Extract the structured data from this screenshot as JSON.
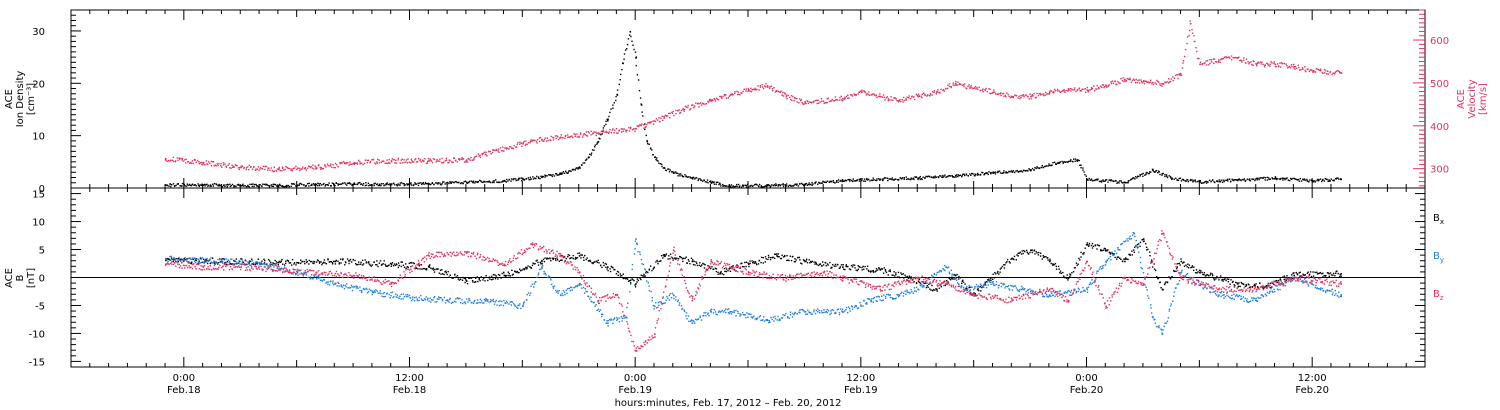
{
  "colors": {
    "density": "#000000",
    "velocity": "#e3325f",
    "bx": "#000000",
    "by": "#1f7fe0",
    "bz": "#e3325f"
  },
  "chart_data": [
    {
      "type": "scatter",
      "panel": "top",
      "ylabel_lines": [
        "ACE",
        "Ion Density",
        "[cm⁻³]"
      ],
      "y2label_lines": [
        "ACE",
        "Velocity",
        "[km/s]"
      ],
      "ylim": [
        0,
        34
      ],
      "y2lim": [
        255,
        670
      ],
      "yticks": [
        "0",
        "10",
        "20",
        "30"
      ],
      "y2ticks": [
        "300",
        "400",
        "500",
        "600"
      ],
      "series": [
        {
          "key": "density",
          "axis": "left",
          "points": [
            [
              -1.0,
              0.7
            ],
            [
              1.0,
              0.7
            ],
            [
              3.0,
              0.6
            ],
            [
              5.0,
              0.6
            ],
            [
              7.0,
              0.8
            ],
            [
              9.0,
              0.9
            ],
            [
              11.0,
              0.8
            ],
            [
              13.0,
              0.9
            ],
            [
              15.0,
              1.2
            ],
            [
              17.0,
              1.5
            ],
            [
              18.0,
              1.8
            ],
            [
              19.0,
              2.2
            ],
            [
              20.0,
              2.8
            ],
            [
              21.0,
              4
            ],
            [
              21.5,
              6
            ],
            [
              22.0,
              9
            ],
            [
              22.5,
              13
            ],
            [
              23.0,
              18
            ],
            [
              23.3,
              24
            ],
            [
              23.7,
              30
            ],
            [
              24.0,
              25
            ],
            [
              24.3,
              16
            ],
            [
              24.6,
              9
            ],
            [
              25.0,
              6
            ],
            [
              25.5,
              4
            ],
            [
              26.0,
              3
            ],
            [
              27.0,
              2
            ],
            [
              28.0,
              1.2
            ],
            [
              29.0,
              0.5
            ],
            [
              31.0,
              0.6
            ],
            [
              33.0,
              0.8
            ],
            [
              35.0,
              1.5
            ],
            [
              37.0,
              1.8
            ],
            [
              39.0,
              2
            ],
            [
              41.0,
              2.5
            ],
            [
              43.0,
              3
            ],
            [
              45.0,
              3.6
            ],
            [
              46.5,
              5
            ],
            [
              47.5,
              5.5
            ],
            [
              48.0,
              1.8
            ],
            [
              50.0,
              1.2
            ],
            [
              51.5,
              3.5
            ],
            [
              52.5,
              2
            ],
            [
              54.0,
              1.3
            ],
            [
              56.0,
              1.6
            ],
            [
              58.0,
              2
            ],
            [
              60.0,
              1.5
            ],
            [
              61.5,
              1.8
            ]
          ]
        },
        {
          "key": "velocity",
          "axis": "right",
          "points": [
            [
              -1.0,
              325
            ],
            [
              1.0,
              315
            ],
            [
              3.0,
              305
            ],
            [
              5.0,
              300
            ],
            [
              7.0,
              305
            ],
            [
              9.0,
              315
            ],
            [
              11.0,
              320
            ],
            [
              13.0,
              320
            ],
            [
              15.0,
              322
            ],
            [
              16.0,
              335
            ],
            [
              18.0,
              360
            ],
            [
              19.0,
              370
            ],
            [
              20.0,
              375
            ],
            [
              22.0,
              385
            ],
            [
              24.0,
              395
            ],
            [
              25.5,
              420
            ],
            [
              26.5,
              440
            ],
            [
              28.0,
              460
            ],
            [
              30.0,
              485
            ],
            [
              31.0,
              495
            ],
            [
              32.0,
              470
            ],
            [
              33.0,
              455
            ],
            [
              35.0,
              465
            ],
            [
              36.0,
              480
            ],
            [
              37.0,
              470
            ],
            [
              38.0,
              460
            ],
            [
              39.0,
              470
            ],
            [
              40.0,
              480
            ],
            [
              41.0,
              500
            ],
            [
              42.0,
              490
            ],
            [
              43.0,
              480
            ],
            [
              44.0,
              470
            ],
            [
              45.0,
              470
            ],
            [
              46.0,
              480
            ],
            [
              47.0,
              485
            ],
            [
              48.0,
              485
            ],
            [
              49.0,
              495
            ],
            [
              50.0,
              510
            ],
            [
              51.0,
              505
            ],
            [
              52.0,
              500
            ],
            [
              53.0,
              520
            ],
            [
              53.5,
              640
            ],
            [
              54.0,
              545
            ],
            [
              55.0,
              555
            ],
            [
              56.0,
              560
            ],
            [
              57.0,
              545
            ],
            [
              58.0,
              545
            ],
            [
              59.0,
              540
            ],
            [
              60.0,
              530
            ],
            [
              61.5,
              525
            ]
          ]
        }
      ]
    },
    {
      "type": "scatter",
      "panel": "bottom",
      "ylabel_lines": [
        "ACE",
        "B",
        "[nT]"
      ],
      "ylim": [
        -16,
        16
      ],
      "yticks": [
        "15",
        "10",
        "5",
        "0",
        "-5",
        "-10",
        "-15"
      ],
      "legend": [
        {
          "key": "bx",
          "label": "B",
          "sub": "x"
        },
        {
          "key": "by",
          "label": "B",
          "sub": "y"
        },
        {
          "key": "bz",
          "label": "B",
          "sub": "z"
        }
      ],
      "series": [
        {
          "key": "bx",
          "points": [
            [
              -1.0,
              3.2
            ],
            [
              2.0,
              3.0
            ],
            [
              5.0,
              2.8
            ],
            [
              8.0,
              3.0
            ],
            [
              11.0,
              2.5
            ],
            [
              13.0,
              2.0
            ],
            [
              15.0,
              -0.5
            ],
            [
              17.0,
              0.5
            ],
            [
              19.0,
              3
            ],
            [
              21.0,
              4
            ],
            [
              22.5,
              2
            ],
            [
              24.0,
              -1
            ],
            [
              25.5,
              4
            ],
            [
              27.0,
              3
            ],
            [
              28.5,
              1
            ],
            [
              30.0,
              2.5
            ],
            [
              31.5,
              4
            ],
            [
              33.0,
              3
            ],
            [
              35.0,
              2
            ],
            [
              37.0,
              1.5
            ],
            [
              38.5,
              0
            ],
            [
              40.0,
              -2
            ],
            [
              41.0,
              0.5
            ],
            [
              42.0,
              -3
            ],
            [
              44.0,
              3.5
            ],
            [
              45.0,
              5
            ],
            [
              46.0,
              3
            ],
            [
              47.0,
              0
            ],
            [
              48.0,
              6
            ],
            [
              49.0,
              5
            ],
            [
              50.0,
              3
            ],
            [
              51.0,
              7
            ],
            [
              52.0,
              -2
            ],
            [
              53.0,
              3
            ],
            [
              54.0,
              1
            ],
            [
              56.0,
              -1
            ],
            [
              57.5,
              -1.5
            ],
            [
              59.0,
              0.5
            ],
            [
              61.5,
              0.8
            ]
          ]
        },
        {
          "key": "by",
          "points": [
            [
              -1.0,
              3.5
            ],
            [
              2.0,
              3
            ],
            [
              4.0,
              2.5
            ],
            [
              6.0,
              1
            ],
            [
              8.0,
              -1
            ],
            [
              10.0,
              -2.5
            ],
            [
              12.0,
              -3.5
            ],
            [
              14.0,
              -4
            ],
            [
              16.0,
              -4
            ],
            [
              18.0,
              -5
            ],
            [
              19.0,
              2
            ],
            [
              20.0,
              -3
            ],
            [
              21.0,
              -1
            ],
            [
              22.5,
              -8
            ],
            [
              23.5,
              -7
            ],
            [
              24.0,
              7
            ],
            [
              25.0,
              -5
            ],
            [
              26.0,
              -3
            ],
            [
              27.0,
              -8
            ],
            [
              28.0,
              -6
            ],
            [
              29.0,
              -6
            ],
            [
              31.0,
              -7.5
            ],
            [
              33.0,
              -6
            ],
            [
              35.0,
              -6
            ],
            [
              36.5,
              -4
            ],
            [
              38.0,
              -3
            ],
            [
              39.0,
              -2
            ],
            [
              40.5,
              2
            ],
            [
              41.5,
              -2
            ],
            [
              43.0,
              -1
            ],
            [
              44.5,
              -2
            ],
            [
              46.0,
              -3
            ],
            [
              48.0,
              -2
            ],
            [
              49.0,
              3
            ],
            [
              50.5,
              8
            ],
            [
              51.5,
              -7
            ],
            [
              52.0,
              -10
            ],
            [
              53.0,
              1
            ],
            [
              55.0,
              -3
            ],
            [
              57.0,
              -4
            ],
            [
              59.0,
              0
            ],
            [
              61.5,
              -3
            ]
          ]
        },
        {
          "key": "bz",
          "points": [
            [
              -1.0,
              2.5
            ],
            [
              1.0,
              2
            ],
            [
              3.0,
              2
            ],
            [
              5.0,
              1.5
            ],
            [
              7.0,
              1
            ],
            [
              9.0,
              0.5
            ],
            [
              11.0,
              -1
            ],
            [
              13.0,
              4
            ],
            [
              15.0,
              4.5
            ],
            [
              17.0,
              2.5
            ],
            [
              18.5,
              6
            ],
            [
              20.0,
              4
            ],
            [
              21.0,
              1
            ],
            [
              22.0,
              -4
            ],
            [
              23.0,
              -3
            ],
            [
              24.0,
              -13
            ],
            [
              25.0,
              -10
            ],
            [
              26.0,
              5
            ],
            [
              27.0,
              -4
            ],
            [
              28.0,
              3
            ],
            [
              29.0,
              2
            ],
            [
              30.0,
              1
            ],
            [
              32.0,
              0
            ],
            [
              34.0,
              1
            ],
            [
              35.0,
              0
            ],
            [
              37.0,
              -2
            ],
            [
              39.0,
              0
            ],
            [
              40.5,
              -1
            ],
            [
              42.0,
              -3
            ],
            [
              44.0,
              -4
            ],
            [
              46.0,
              -2
            ],
            [
              47.0,
              -4
            ],
            [
              48.0,
              3
            ],
            [
              49.0,
              -5
            ],
            [
              50.0,
              0
            ],
            [
              51.0,
              -1
            ],
            [
              52.0,
              8
            ],
            [
              53.0,
              0
            ],
            [
              55.0,
              -2
            ],
            [
              57.0,
              -2
            ],
            [
              59.0,
              0
            ],
            [
              61.5,
              -1
            ]
          ]
        }
      ]
    }
  ],
  "time_axis": {
    "xlim": [
      -6,
      66
    ],
    "tick_labels": [
      {
        "hour": 0,
        "time": "0:00",
        "date": "Feb.18"
      },
      {
        "hour": 12,
        "time": "12:00",
        "date": "Feb.18"
      },
      {
        "hour": 24,
        "time": "0:00",
        "date": "Feb.19"
      },
      {
        "hour": 36,
        "time": "12:00",
        "date": "Feb.19"
      },
      {
        "hour": 48,
        "time": "0:00",
        "date": "Feb.20"
      },
      {
        "hour": 60,
        "time": "12:00",
        "date": "Feb.20"
      }
    ],
    "xlabel": "hours:minutes, Feb. 17, 2012 – Feb. 20, 2012"
  }
}
